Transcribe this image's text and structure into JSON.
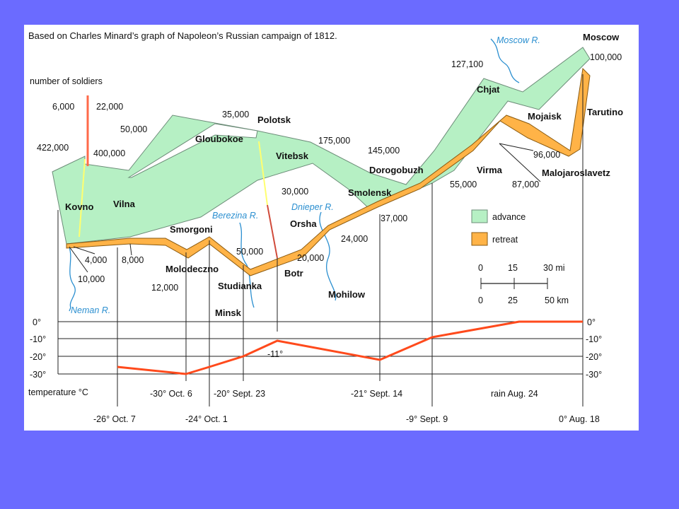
{
  "title": "Based on Charles Minard’s graph of Napoleon’s Russian campaign of 1812.",
  "colors": {
    "advance": "#b6f0c4",
    "retreat": "#ffb347",
    "temperature_line": "#ff4a1c",
    "river": "#2b8fd0",
    "frame": "#6b6bff"
  },
  "labels": {
    "number_of_soldiers": "number of soldiers",
    "temperature": "temperature °C"
  },
  "places": {
    "moscow": "Moscow",
    "tarutino": "Tarutino",
    "mojaisk": "Mojaisk",
    "chjat": "Chjat",
    "malojaroslavetz": "Malojaroslavetz",
    "virma": "Virma",
    "dorogobuzh": "Dorogobuzh",
    "smolensk": "Smolensk",
    "vitebsk": "Vitebsk",
    "polotsk": "Polotsk",
    "gloubokoe": "Gloubokoe",
    "orsha": "Orsha",
    "mohilow": "Mohilow",
    "botr": "Botr",
    "studianka": "Studianka",
    "minsk": "Minsk",
    "molodeczno": "Molodeczno",
    "smorgoni": "Smorgoni",
    "vilna": "Vilna",
    "kovno": "Kovno"
  },
  "rivers": {
    "moscow": "Moscow R.",
    "berezina": "Berezina R.",
    "dnieper": "Dnieper R.",
    "neman": "Neman R."
  },
  "counts": {
    "c100000": "100,000",
    "c127100": "127,100",
    "c96000": "96,000",
    "c87000": "87,000",
    "c55000": "55,000",
    "c145000": "145,000",
    "c37000": "37,000",
    "c175000": "175,000",
    "c30000": "30,000",
    "c24000": "24,000",
    "c35000": "35,000",
    "c20000": "20,000",
    "c50000a": "50,000",
    "c50000b": "50,000",
    "c400000": "400,000",
    "c422000": "422,000",
    "c6000": "6,000",
    "c22000": "22,000",
    "c4000": "4,000",
    "c10000": "10,000",
    "c8000": "8,000",
    "c12000": "12,000"
  },
  "legend": {
    "advance": "advance",
    "retreat": "retreat"
  },
  "scale": {
    "mi": [
      "0",
      "15",
      "30 mi"
    ],
    "km": [
      "0",
      "25",
      "50 km"
    ]
  },
  "temp_axis": {
    "left": [
      "0°",
      "-10°",
      "-20°",
      "-30°"
    ],
    "right": [
      "0°",
      "-10°",
      "-20°",
      "-30°"
    ]
  },
  "temp_labels": {
    "t1": "-26° Oct. 7",
    "t2": "-30° Oct. 6",
    "t3": "-24° Oct. 1",
    "t4": "-20° Sept. 23",
    "t5": "-11°",
    "t6": "-21° Sept. 14",
    "t7": "-9° Sept. 9",
    "t8": "rain Aug. 24",
    "t9": "0° Aug. 18"
  }
}
